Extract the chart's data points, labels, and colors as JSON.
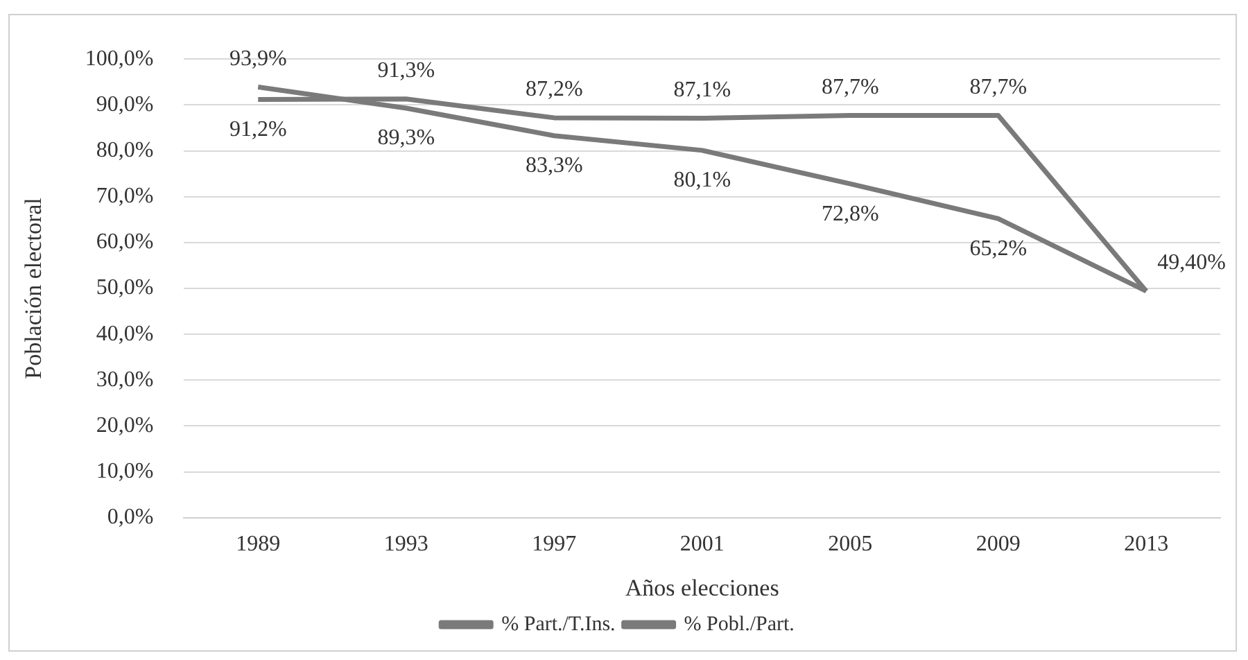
{
  "chart_data": {
    "type": "line",
    "xlabel": "Años elecciones",
    "ylabel": "Población electoral",
    "categories": [
      "1989",
      "1993",
      "1997",
      "2001",
      "2005",
      "2009",
      "2013"
    ],
    "series": [
      {
        "name": "% Part./T.Ins.",
        "color": "#7a7a7a",
        "values": [
          91.2,
          91.3,
          87.2,
          87.1,
          87.7,
          87.7,
          49.4
        ],
        "value_labels": [
          "91,2%",
          "91,3%",
          "87,2%",
          "87,1%",
          "87,7%",
          "87,7%",
          "49,40%"
        ]
      },
      {
        "name": "% Pobl./Part.",
        "color": "#7a7a7a",
        "values": [
          93.9,
          89.3,
          83.3,
          80.1,
          72.8,
          65.2,
          49.4
        ],
        "value_labels": [
          "93,9%",
          "89,3%",
          "83,3%",
          "80,1%",
          "72,8%",
          "65,2%",
          null
        ]
      }
    ],
    "ylim": [
      0,
      100
    ],
    "yticks": [
      {
        "value": 0,
        "label": "0,0%"
      },
      {
        "value": 10,
        "label": "10,0%"
      },
      {
        "value": 20,
        "label": "20,0%"
      },
      {
        "value": 30,
        "label": "30,0%"
      },
      {
        "value": 40,
        "label": "40,0%"
      },
      {
        "value": 50,
        "label": "50,0%"
      },
      {
        "value": 60,
        "label": "60,0%"
      },
      {
        "value": 70,
        "label": "70,0%"
      },
      {
        "value": 80,
        "label": "80,0%"
      },
      {
        "value": 90,
        "label": "90,0%"
      },
      {
        "value": 100,
        "label": "100,0%"
      }
    ],
    "grid": "y",
    "legend": "bottom",
    "marker": "none",
    "line_style": "solid"
  }
}
